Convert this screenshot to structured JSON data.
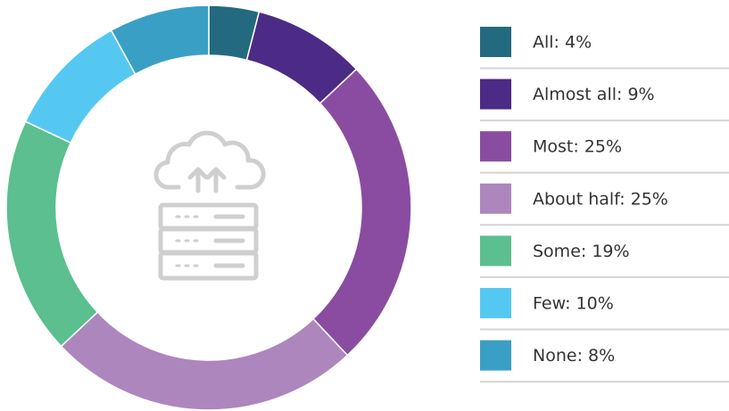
{
  "chart_data": {
    "type": "donut",
    "values": [
      4,
      9,
      25,
      25,
      19,
      10,
      8
    ],
    "value_labels": [
      "All: 4%",
      "Almost all: 9%",
      "Most: 25%",
      "About half: 25%",
      "Some: 19%",
      "Few: 10%",
      "None: 8%"
    ],
    "colors": [
      "#236a80",
      "#4b2b85",
      "#8a4ca0",
      "#ad86bd",
      "#5bbf8f",
      "#55c8f2",
      "#3a9fc4"
    ]
  }
}
